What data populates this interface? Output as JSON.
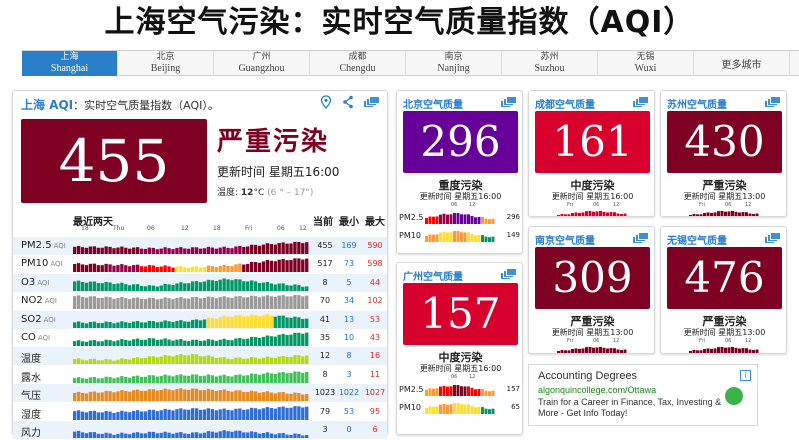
{
  "page_title": "上海空气污染：实时空气质量指数（AQI）",
  "tabs": [
    {
      "zh": "上海",
      "en": "Shanghai",
      "active": true
    },
    {
      "zh": "北京",
      "en": "Beijing"
    },
    {
      "zh": "广州",
      "en": "Guangzhou"
    },
    {
      "zh": "成都",
      "en": "Chengdu"
    },
    {
      "zh": "南京",
      "en": "Nanjing"
    },
    {
      "zh": "苏州",
      "en": "Suzhou"
    },
    {
      "zh": "无锡",
      "en": "Wuxi"
    },
    {
      "zh": "更多城市",
      "en": ""
    }
  ],
  "main": {
    "city": "上海 AQI",
    "subtitle": "：实时空气质量指数（AQI）。",
    "aqi": "455",
    "aqi_color": "#7e0023",
    "level": "严重污染",
    "update": "更新时间 星期五16:00",
    "temp_label": "温度:",
    "temp": "12",
    "temp_unit": "°C",
    "temp_range": "(6 ° – 17°)",
    "icons": [
      "location-pin-icon",
      "share-icon",
      "stack-icon"
    ],
    "history_label": "最近两天",
    "col_current": "当前",
    "col_min": "最小",
    "col_max": "最大",
    "ticks": [
      "18",
      "Thu",
      "06",
      "12",
      "18",
      "Fri",
      "06",
      "12"
    ],
    "rows": [
      {
        "label": "PM2.5",
        "suffix": "AQI",
        "cur": "455",
        "min": "169",
        "max": "590",
        "alt": true,
        "colors": [
          "#7e0023",
          "#7e0023",
          "#99004c",
          "#99004c",
          "#99004c",
          "#7e0023",
          "#7e0023"
        ],
        "levels": [
          0.45,
          0.42,
          0.35,
          0.38,
          0.4,
          0.62,
          0.75
        ]
      },
      {
        "label": "PM10",
        "suffix": "AQI",
        "cur": "517",
        "min": "73",
        "max": "598",
        "alt": false,
        "colors": [
          "#7e0023",
          "#99004c",
          "#ff0000",
          "#ffde33",
          "#ff9933",
          "#7e0023",
          "#7e0023"
        ],
        "levels": [
          0.5,
          0.45,
          0.38,
          0.3,
          0.4,
          0.7,
          0.85
        ]
      },
      {
        "label": "O3",
        "suffix": "AQI",
        "cur": "8",
        "min": "5",
        "max": "44",
        "alt": true,
        "colors": [
          "#009966"
        ],
        "levels": [
          0.6,
          0.5,
          0.3,
          0.55,
          0.75,
          0.5,
          0.3
        ]
      },
      {
        "label": "NO2",
        "suffix": "AQI",
        "cur": "70",
        "min": "34",
        "max": "102",
        "alt": false,
        "colors": [
          "#9a9a9a"
        ],
        "levels": [
          0.8,
          0.7,
          0.65,
          0.7,
          0.75,
          0.8,
          0.85
        ]
      },
      {
        "label": "SO2",
        "suffix": "AQI",
        "cur": "41",
        "min": "13",
        "max": "53",
        "alt": true,
        "colors": [
          "#009966",
          "#009966",
          "#009966",
          "#009966",
          "#ffde33",
          "#ffde33",
          "#009966"
        ],
        "levels": [
          0.35,
          0.35,
          0.4,
          0.45,
          0.75,
          0.8,
          0.6
        ]
      },
      {
        "label": "CO",
        "suffix": "AQI",
        "cur": "35",
        "min": "10",
        "max": "43",
        "alt": false,
        "colors": [
          "#009966"
        ],
        "levels": [
          0.3,
          0.35,
          0.45,
          0.35,
          0.4,
          0.6,
          0.85
        ]
      },
      {
        "label": "温度",
        "suffix": "",
        "cur": "12",
        "min": "8",
        "max": "16",
        "alt": true,
        "colors": [
          "#b5d80f"
        ],
        "levels": [
          0.3,
          0.25,
          0.45,
          0.6,
          0.35,
          0.4,
          0.55
        ]
      },
      {
        "label": "露水",
        "suffix": "",
        "cur": "8",
        "min": "3",
        "max": "11",
        "alt": false,
        "colors": [
          "#3fc25a"
        ],
        "levels": [
          0.3,
          0.35,
          0.45,
          0.5,
          0.45,
          0.6,
          0.7
        ]
      },
      {
        "label": "气压",
        "suffix": "",
        "cur": "1023",
        "min": "1022",
        "max": "1027",
        "alt": true,
        "colors": [
          "#e98b1c"
        ],
        "levels": [
          0.5,
          0.6,
          0.7,
          0.75,
          0.65,
          0.55,
          0.45
        ]
      },
      {
        "label": "湿度",
        "suffix": "",
        "cur": "79",
        "min": "53",
        "max": "95",
        "alt": false,
        "colors": [
          "#2e6ed6"
        ],
        "levels": [
          0.55,
          0.5,
          0.6,
          0.7,
          0.65,
          0.75,
          0.85
        ]
      },
      {
        "label": "风力",
        "suffix": "",
        "cur": "3",
        "min": "0",
        "max": "6",
        "alt": true,
        "colors": [
          "#2e6ed6"
        ],
        "levels": [
          0.4,
          0.25,
          0.35,
          0.3,
          0.45,
          0.3,
          0.2
        ]
      }
    ]
  },
  "cities": [
    {
      "id": "beijing",
      "title": "北京空气质量",
      "aqi": "296",
      "color": "#660099",
      "level": "重度污染",
      "update": "更新时间 星期五16:00",
      "has_mini": true,
      "mini": [
        {
          "label": "PM2.5",
          "value": "296",
          "colors": [
            "#ff0000",
            "#99004c",
            "#660099",
            "#660099",
            "#ff9933"
          ]
        },
        {
          "label": "PM10",
          "value": "149",
          "colors": [
            "#ff9933",
            "#ffde33",
            "#ff9933",
            "#ffde33",
            "#009966"
          ]
        }
      ],
      "ticks": [
        "06",
        "12"
      ]
    },
    {
      "id": "chengdu",
      "title": "成都空气质量",
      "aqi": "161",
      "color": "#d7002d",
      "level": "中度污染",
      "update": "更新时间 星期五16:00",
      "has_mini": false,
      "ticks": [
        "Fri",
        "06",
        "12"
      ]
    },
    {
      "id": "suzhou",
      "title": "苏州空气质量",
      "aqi": "430",
      "color": "#7e0023",
      "level": "严重污染",
      "update": "更新时间 星期五13:00",
      "has_mini": false,
      "ticks": [
        "Fri",
        "06",
        "12"
      ]
    },
    {
      "id": "guangzhou",
      "title": "广州空气质量",
      "aqi": "157",
      "color": "#d7002d",
      "level": "中度污染",
      "update": "更新时间 星期五16:00",
      "has_mini": true,
      "mini": [
        {
          "label": "PM2.5",
          "value": "157",
          "colors": [
            "#ff9933",
            "#ff0000",
            "#7e0023",
            "#ff0000",
            "#ff9933"
          ]
        },
        {
          "label": "PM10",
          "value": "65",
          "colors": [
            "#ffde33",
            "#ff9933",
            "#ffde33",
            "#ffde33",
            "#009966"
          ]
        }
      ],
      "ticks": [
        "06",
        "12"
      ]
    },
    {
      "id": "nanjing",
      "title": "南京空气质量",
      "aqi": "309",
      "color": "#7e0023",
      "level": "严重污染",
      "update": "更新时间 星期五13:00",
      "has_mini": false,
      "ticks": [
        "Fri",
        "06",
        "12"
      ]
    },
    {
      "id": "wuxi",
      "title": "无锡空气质量",
      "aqi": "476",
      "color": "#7e0023",
      "level": "严重污染",
      "update": "更新时间 星期五13:00",
      "has_mini": false,
      "ticks": [
        "Fri",
        "06",
        "12"
      ]
    }
  ],
  "ad": {
    "title": "Accounting Degrees",
    "url": "algonquincollege.com/Ottawa",
    "desc": "Train for a Career in Finance, Tax, Investing & More - Get Info Today!"
  }
}
